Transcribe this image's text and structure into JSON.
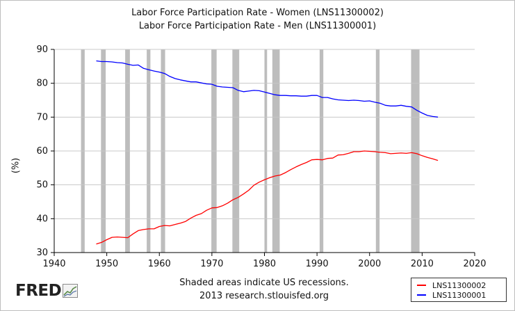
{
  "chart_data": {
    "type": "line",
    "title": "Labor Force Participation Rate - Women (LNS11300002)",
    "subtitle": "Labor Force Participation Rate - Men (LNS11300001)",
    "xlabel": "",
    "ylabel": "(%)",
    "xlim": [
      1940,
      2020
    ],
    "ylim": [
      30,
      90
    ],
    "xticks": [
      1940,
      1950,
      1960,
      1970,
      1980,
      1990,
      2000,
      2010,
      2020
    ],
    "yticks": [
      30,
      40,
      50,
      60,
      70,
      80,
      90
    ],
    "grid": true,
    "legend_position": "bottom-right",
    "series": [
      {
        "name": "LNS11300002",
        "color": "#ff0000",
        "x": [
          1948,
          1949,
          1950,
          1951,
          1952,
          1953,
          1954,
          1955,
          1956,
          1957,
          1958,
          1959,
          1960,
          1961,
          1962,
          1963,
          1964,
          1965,
          1966,
          1967,
          1968,
          1969,
          1970,
          1971,
          1972,
          1973,
          1974,
          1975,
          1976,
          1977,
          1978,
          1979,
          1980,
          1981,
          1982,
          1983,
          1984,
          1985,
          1986,
          1987,
          1988,
          1989,
          1990,
          1991,
          1992,
          1993,
          1994,
          1995,
          1996,
          1997,
          1998,
          1999,
          2000,
          2001,
          2002,
          2003,
          2004,
          2005,
          2006,
          2007,
          2008,
          2009,
          2010,
          2011,
          2012,
          2013
        ],
        "y": [
          32.5,
          33.0,
          33.8,
          34.5,
          34.6,
          34.5,
          34.4,
          35.5,
          36.5,
          36.8,
          37.0,
          37.0,
          37.7,
          38.0,
          37.9,
          38.3,
          38.7,
          39.2,
          40.2,
          41.0,
          41.5,
          42.5,
          43.2,
          43.3,
          43.8,
          44.6,
          45.6,
          46.3,
          47.3,
          48.4,
          49.9,
          50.8,
          51.5,
          52.1,
          52.6,
          52.9,
          53.6,
          54.5,
          55.3,
          56.0,
          56.6,
          57.4,
          57.5,
          57.4,
          57.8,
          57.9,
          58.8,
          58.9,
          59.3,
          59.8,
          59.8,
          60.0,
          59.9,
          59.8,
          59.6,
          59.5,
          59.2,
          59.3,
          59.4,
          59.3,
          59.5,
          59.2,
          58.6,
          58.1,
          57.7,
          57.2
        ]
      },
      {
        "name": "LNS11300001",
        "color": "#0000ff",
        "x": [
          1948,
          1949,
          1950,
          1951,
          1952,
          1953,
          1954,
          1955,
          1956,
          1957,
          1958,
          1959,
          1960,
          1961,
          1962,
          1963,
          1964,
          1965,
          1966,
          1967,
          1968,
          1969,
          1970,
          1971,
          1972,
          1973,
          1974,
          1975,
          1976,
          1977,
          1978,
          1979,
          1980,
          1981,
          1982,
          1983,
          1984,
          1985,
          1986,
          1987,
          1988,
          1989,
          1990,
          1991,
          1992,
          1993,
          1994,
          1995,
          1996,
          1997,
          1998,
          1999,
          2000,
          2001,
          2002,
          2003,
          2004,
          2005,
          2006,
          2007,
          2008,
          2009,
          2010,
          2011,
          2012,
          2013
        ],
        "y": [
          86.6,
          86.4,
          86.4,
          86.3,
          86.1,
          86.0,
          85.6,
          85.3,
          85.4,
          84.4,
          84.0,
          83.6,
          83.3,
          82.9,
          82.0,
          81.4,
          81.0,
          80.7,
          80.4,
          80.4,
          80.1,
          79.8,
          79.7,
          79.1,
          78.9,
          78.8,
          78.7,
          77.9,
          77.5,
          77.7,
          77.9,
          77.8,
          77.4,
          77.0,
          76.6,
          76.4,
          76.4,
          76.3,
          76.3,
          76.2,
          76.2,
          76.4,
          76.4,
          75.8,
          75.8,
          75.4,
          75.1,
          75.0,
          74.9,
          75.0,
          74.9,
          74.7,
          74.8,
          74.4,
          74.1,
          73.5,
          73.3,
          73.3,
          73.5,
          73.2,
          73.0,
          72.0,
          71.2,
          70.5,
          70.2,
          70.0
        ]
      }
    ],
    "recessions": [
      [
        1945.1,
        1945.8
      ],
      [
        1948.9,
        1949.8
      ],
      [
        1953.5,
        1954.4
      ],
      [
        1957.6,
        1958.3
      ],
      [
        1960.3,
        1961.1
      ],
      [
        1969.9,
        1970.9
      ],
      [
        1973.9,
        1975.2
      ],
      [
        1980.0,
        1980.5
      ],
      [
        1981.5,
        1982.9
      ],
      [
        1990.5,
        1991.2
      ],
      [
        2001.2,
        2001.9
      ],
      [
        2007.9,
        2009.5
      ]
    ],
    "recession_color": "#bdbdbd"
  },
  "footer": {
    "note_line1": "Shaded areas indicate US recessions.",
    "note_line2": "2013 research.stlouisfed.org",
    "logo_text": "FRED"
  }
}
